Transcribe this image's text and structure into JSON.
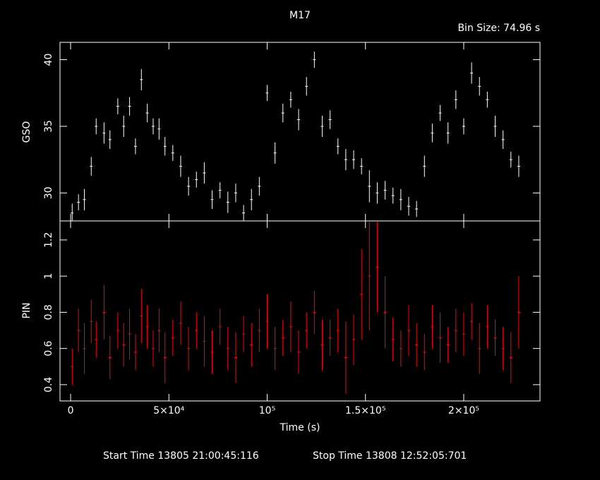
{
  "chart_data": [
    {
      "type": "errorbar",
      "title": "M17",
      "subtitle": "Bin Size: 74.96 s",
      "y_label": "GSO",
      "color": "#ffffff",
      "x": [
        800,
        4000,
        7000,
        10500,
        13000,
        17000,
        20000,
        24000,
        27000,
        30000,
        33000,
        36000,
        39000,
        42000,
        45000,
        48000,
        52000,
        56000,
        60000,
        64000,
        68000,
        72000,
        76000,
        80000,
        84000,
        88000,
        92000,
        96000,
        100000,
        104000,
        108000,
        112000,
        116000,
        120000,
        124000,
        128000,
        132000,
        136000,
        140000,
        144000,
        148000,
        152000,
        156000,
        160000,
        164000,
        168000,
        172000,
        176000,
        180000,
        184000,
        188000,
        192000,
        196000,
        200000,
        204000,
        208000,
        212000,
        216000,
        220000,
        224000,
        228000
      ],
      "values": [
        28.5,
        29.3,
        29.5,
        32,
        35,
        34.5,
        34,
        36.5,
        35,
        36.5,
        33.5,
        38.5,
        36,
        35,
        34.8,
        33.5,
        33,
        32,
        30.5,
        31,
        31.5,
        29.5,
        30.2,
        29.3,
        30,
        28.5,
        29.5,
        30.5,
        37.5,
        33,
        36,
        37,
        35.5,
        38,
        40,
        35,
        35.5,
        33.5,
        32.5,
        32.5,
        32,
        30.5,
        30,
        30.2,
        29.8,
        29.5,
        29,
        28.8,
        32,
        34.5,
        36,
        34.5,
        37,
        35,
        39,
        38,
        37,
        35,
        34,
        32.5,
        32
      ],
      "errors": [
        0.7,
        0.6,
        0.8,
        0.7,
        0.6,
        0.8,
        0.7,
        0.6,
        0.8,
        0.7,
        0.6,
        0.8,
        0.7,
        0.6,
        0.8,
        0.7,
        0.6,
        0.8,
        0.7,
        0.6,
        0.8,
        0.7,
        0.6,
        0.8,
        0.7,
        0.6,
        0.8,
        0.7,
        0.6,
        0.8,
        0.7,
        0.6,
        0.8,
        0.7,
        0.6,
        0.8,
        0.7,
        0.6,
        0.8,
        0.7,
        0.6,
        1.2,
        0.8,
        0.7,
        0.6,
        0.8,
        0.7,
        0.6,
        0.8,
        0.7,
        0.6,
        0.8,
        0.7,
        0.6,
        0.8,
        0.7,
        0.6,
        0.8,
        0.7,
        0.6,
        0.8
      ],
      "xlim": [
        -5400,
        238800
      ],
      "ylim": [
        27.9,
        41.3
      ],
      "yticks": [
        30,
        35,
        40
      ]
    },
    {
      "type": "errorbar",
      "y_label": "PIN",
      "x_label": "Time (s)",
      "color": "#ff0000",
      "annotations": [
        "Start Time 13805 21:00:45:116",
        "Stop Time 13808 12:52:05:701"
      ],
      "x": [
        800,
        4000,
        7000,
        10500,
        13000,
        17000,
        20000,
        24000,
        27000,
        30000,
        33000,
        36000,
        39000,
        42000,
        45000,
        48000,
        52000,
        56000,
        60000,
        64000,
        68000,
        72000,
        76000,
        80000,
        84000,
        88000,
        92000,
        96000,
        100000,
        104000,
        108000,
        112000,
        116000,
        120000,
        124000,
        128000,
        132000,
        136000,
        140000,
        144000,
        148000,
        152000,
        156000,
        160000,
        164000,
        168000,
        172000,
        176000,
        180000,
        184000,
        188000,
        192000,
        196000,
        200000,
        204000,
        208000,
        212000,
        216000,
        220000,
        224000,
        228000
      ],
      "values": [
        0.5,
        0.7,
        0.6,
        0.75,
        0.65,
        0.8,
        0.55,
        0.7,
        0.62,
        0.68,
        0.58,
        0.78,
        0.72,
        0.6,
        0.7,
        0.55,
        0.66,
        0.74,
        0.6,
        0.7,
        0.64,
        0.58,
        0.72,
        0.6,
        0.55,
        0.68,
        0.62,
        0.7,
        0.75,
        0.6,
        0.66,
        0.72,
        0.58,
        0.7,
        0.8,
        0.62,
        0.66,
        0.7,
        0.55,
        0.65,
        0.9,
        1.0,
        1.05,
        0.8,
        0.65,
        0.6,
        0.7,
        0.62,
        0.58,
        0.72,
        0.66,
        0.62,
        0.7,
        0.68,
        0.75,
        0.6,
        0.72,
        0.66,
        0.6,
        0.55,
        0.8
      ],
      "errors": [
        0.1,
        0.12,
        0.14,
        0.12,
        0.1,
        0.15,
        0.12,
        0.1,
        0.12,
        0.14,
        0.1,
        0.15,
        0.12,
        0.1,
        0.12,
        0.14,
        0.1,
        0.12,
        0.12,
        0.1,
        0.14,
        0.12,
        0.1,
        0.12,
        0.14,
        0.1,
        0.12,
        0.12,
        0.15,
        0.12,
        0.1,
        0.14,
        0.12,
        0.1,
        0.12,
        0.14,
        0.1,
        0.12,
        0.2,
        0.14,
        0.25,
        0.3,
        0.25,
        0.2,
        0.12,
        0.1,
        0.14,
        0.12,
        0.1,
        0.12,
        0.14,
        0.1,
        0.12,
        0.12,
        0.1,
        0.14,
        0.12,
        0.1,
        0.12,
        0.14,
        0.2
      ],
      "xlim": [
        -5400,
        238800
      ],
      "ylim": [
        0.31,
        1.305
      ],
      "yticks": [
        0.4,
        0.6,
        0.8,
        1,
        1.2
      ],
      "xticks": [
        0,
        {
          "value": 50000,
          "label": "5×10⁴"
        },
        {
          "value": 100000,
          "label": "10⁵"
        },
        {
          "value": 150000,
          "label": "1.5×10⁵"
        },
        {
          "value": 200000,
          "label": "2×10⁵"
        }
      ]
    }
  ]
}
